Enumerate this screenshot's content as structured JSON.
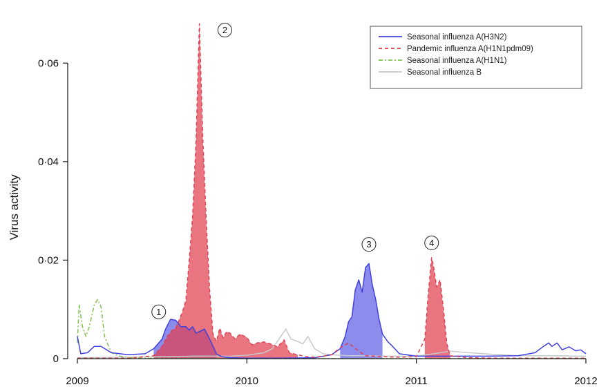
{
  "chart_data": {
    "type": "line",
    "title": "",
    "xlabel": "",
    "ylabel": "Virus activity",
    "x_ticks": [
      "2009",
      "2010",
      "2011",
      "2012"
    ],
    "y_ticks": [
      "0",
      "0·02",
      "0·04",
      "0·06"
    ],
    "y_tick_values": [
      0,
      0.02,
      0.04,
      0.06
    ],
    "xlim": [
      2009,
      2012
    ],
    "ylim": [
      0,
      0.07
    ],
    "grid": false,
    "legend_position": "top-right",
    "series": [
      {
        "name": "Seasonal influenza A(H3N2)",
        "color": "#4040e0",
        "dash": "solid",
        "x": [
          2009.0,
          2009.02,
          2009.06,
          2009.1,
          2009.14,
          2009.2,
          2009.3,
          2009.4,
          2009.45,
          2009.5,
          2009.52,
          2009.55,
          2009.58,
          2009.61,
          2009.64,
          2009.66,
          2009.68,
          2009.7,
          2009.72,
          2009.75,
          2009.78,
          2009.82,
          2009.85,
          2009.9,
          2010.0,
          2010.2,
          2010.4,
          2010.5,
          2010.55,
          2010.58,
          2010.6,
          2010.62,
          2010.64,
          2010.66,
          2010.68,
          2010.7,
          2010.72,
          2010.74,
          2010.76,
          2010.78,
          2010.8,
          2010.83,
          2010.86,
          2010.9,
          2011.0,
          2011.2,
          2011.4,
          2011.6,
          2011.7,
          2011.75,
          2011.78,
          2011.8,
          2011.83,
          2011.86,
          2011.9,
          2011.94,
          2011.97,
          2012.0
        ],
        "values": [
          0.0045,
          0.001,
          0.0012,
          0.0025,
          0.0025,
          0.0012,
          0.0008,
          0.001,
          0.002,
          0.004,
          0.006,
          0.008,
          0.0078,
          0.0065,
          0.0065,
          0.0058,
          0.0065,
          0.0052,
          0.0055,
          0.006,
          0.004,
          0.001,
          0.0004,
          0.0002,
          0.0001,
          0.0001,
          0.0002,
          0.0008,
          0.002,
          0.0045,
          0.0075,
          0.0085,
          0.014,
          0.016,
          0.0135,
          0.0185,
          0.0193,
          0.015,
          0.012,
          0.008,
          0.005,
          0.0035,
          0.0025,
          0.001,
          0.0005,
          0.0005,
          0.0005,
          0.0006,
          0.0012,
          0.0025,
          0.0032,
          0.0025,
          0.0032,
          0.0018,
          0.0024,
          0.0016,
          0.0018,
          0.001
        ]
      },
      {
        "name": "Pandemic influenza A(H1N1pdm09)",
        "color": "#e04050",
        "dash": "dashed",
        "x": [
          2009.0,
          2009.3,
          2009.45,
          2009.5,
          2009.53,
          2009.56,
          2009.58,
          2009.6,
          2009.62,
          2009.64,
          2009.66,
          2009.68,
          2009.7,
          2009.72,
          2009.74,
          2009.76,
          2009.78,
          2009.8,
          2009.82,
          2009.84,
          2009.86,
          2009.88,
          2009.9,
          2009.93,
          2009.96,
          2010.0,
          2010.03,
          2010.06,
          2010.1,
          2010.14,
          2010.18,
          2010.22,
          2010.25,
          2010.3,
          2010.35,
          2010.4,
          2010.45,
          2010.5,
          2010.55,
          2010.6,
          2010.65,
          2010.7,
          2010.8,
          2010.9,
          2011.0,
          2011.05,
          2011.07,
          2011.09,
          2011.1,
          2011.12,
          2011.14,
          2011.16,
          2011.18,
          2011.2,
          2011.3,
          2011.5,
          2011.7,
          2012.0
        ],
        "values": [
          0.0001,
          0.0001,
          0.0006,
          0.0025,
          0.0045,
          0.0058,
          0.0062,
          0.0078,
          0.0095,
          0.0118,
          0.02,
          0.029,
          0.044,
          0.068,
          0.045,
          0.028,
          0.014,
          0.005,
          0.0035,
          0.0062,
          0.0042,
          0.0055,
          0.0052,
          0.004,
          0.005,
          0.0043,
          0.0028,
          0.0032,
          0.0034,
          0.003,
          0.0024,
          0.0038,
          0.0012,
          0.0008,
          0.0004,
          0.0003,
          0.0005,
          0.0008,
          0.0022,
          0.0032,
          0.0018,
          0.0006,
          0.0004,
          0.0003,
          0.0004,
          0.004,
          0.013,
          0.0205,
          0.019,
          0.0145,
          0.016,
          0.01,
          0.003,
          0.0006,
          0.0002,
          0.0001,
          0.0001,
          0.0001
        ]
      },
      {
        "name": "Seasonal influenza A(H1N1)",
        "color": "#80c050",
        "dash": "dotdash",
        "x": [
          2009.0,
          2009.01,
          2009.03,
          2009.05,
          2009.07,
          2009.1,
          2009.12,
          2009.14,
          2009.16,
          2009.2,
          2009.25,
          2009.3,
          2009.4,
          2010.0,
          2012.0
        ],
        "values": [
          0.0032,
          0.011,
          0.0065,
          0.0045,
          0.0065,
          0.011,
          0.012,
          0.0105,
          0.0045,
          0.0012,
          0.0005,
          0.0002,
          0.0001,
          0.0,
          0.0
        ]
      },
      {
        "name": "Seasonal influenza B",
        "color": "#c8c8c8",
        "dash": "solid",
        "x": [
          2009.0,
          2009.3,
          2009.5,
          2009.7,
          2009.9,
          2010.0,
          2010.1,
          2010.15,
          2010.2,
          2010.23,
          2010.26,
          2010.3,
          2010.33,
          2010.36,
          2010.4,
          2010.45,
          2010.5,
          2010.6,
          2010.7,
          2010.8,
          2010.9,
          2011.0,
          2011.2,
          2011.4,
          2011.6,
          2011.8,
          2012.0
        ],
        "values": [
          0.0002,
          0.0003,
          0.0004,
          0.0005,
          0.0005,
          0.0007,
          0.0012,
          0.002,
          0.0045,
          0.006,
          0.004,
          0.0035,
          0.003,
          0.0045,
          0.002,
          0.001,
          0.0008,
          0.0006,
          0.0006,
          0.0005,
          0.0005,
          0.0005,
          0.0015,
          0.001,
          0.0006,
          0.0006,
          0.0005
        ]
      }
    ],
    "shaded_episodes": [
      {
        "label": "1",
        "series": "Seasonal influenza A(H3N2)",
        "x_range": [
          2009.45,
          2009.82
        ],
        "color": "#4040e0",
        "annotation_x": 2009.48,
        "annotation_y": 0.0095
      },
      {
        "label": "2",
        "series": "Pandemic influenza A(H1N1pdm09)",
        "x_range": [
          2009.45,
          2010.3
        ],
        "color": "#e04050",
        "annotation_x": 2009.87,
        "annotation_y": 0.0667
      },
      {
        "label": "3",
        "series": "Seasonal influenza A(H3N2)",
        "x_range": [
          2010.55,
          2010.8
        ],
        "color": "#4040e0",
        "annotation_x": 2010.72,
        "annotation_y": 0.0232
      },
      {
        "label": "4",
        "series": "Pandemic influenza A(H1N1pdm09)",
        "x_range": [
          2011.05,
          2011.2
        ],
        "color": "#e04050",
        "annotation_x": 2011.09,
        "annotation_y": 0.0235
      }
    ]
  }
}
